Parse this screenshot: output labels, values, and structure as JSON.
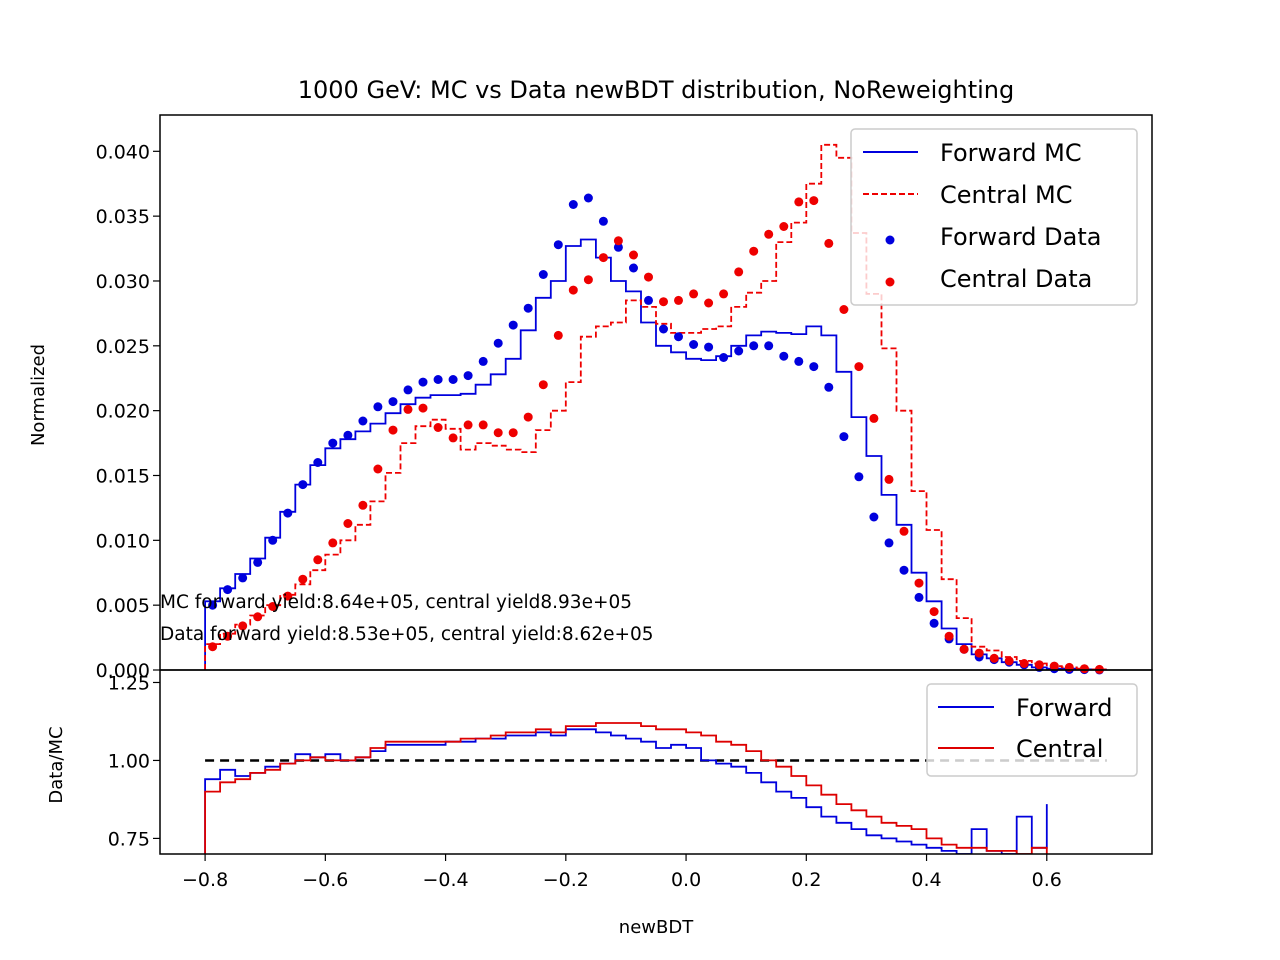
{
  "chart_data": [
    {
      "type": "line",
      "panel": "main",
      "title": "1000 GeV: MC vs Data newBDT distribution, NoReweighting",
      "ylabel": "Normalized",
      "xlim": [
        -0.875,
        0.775
      ],
      "ylim": [
        0.0,
        0.0428
      ],
      "yticks": [
        "0.000",
        "0.005",
        "0.010",
        "0.015",
        "0.020",
        "0.025",
        "0.030",
        "0.035",
        "0.040"
      ],
      "legend_position": "upper right",
      "legend": [
        "Forward MC",
        "Central MC",
        "Forward Data",
        "Central Data"
      ],
      "annotations": [
        "MC forward yield:8.64e+05, central yield8.93e+05",
        "Data forward yield:8.53e+05, central yield:8.62e+05"
      ],
      "bin_edges": [
        -0.8,
        -0.775,
        -0.75,
        -0.725,
        -0.7,
        -0.675,
        -0.65,
        -0.625,
        -0.6,
        -0.575,
        -0.55,
        -0.525,
        -0.5,
        -0.475,
        -0.45,
        -0.425,
        -0.4,
        -0.375,
        -0.35,
        -0.325,
        -0.3,
        -0.275,
        -0.25,
        -0.225,
        -0.2,
        -0.175,
        -0.15,
        -0.125,
        -0.1,
        -0.075,
        -0.05,
        -0.025,
        0.0,
        0.025,
        0.05,
        0.075,
        0.1,
        0.125,
        0.15,
        0.175,
        0.2,
        0.225,
        0.25,
        0.275,
        0.3,
        0.325,
        0.35,
        0.375,
        0.4,
        0.425,
        0.45,
        0.475,
        0.5,
        0.525,
        0.55,
        0.575,
        0.6,
        0.625,
        0.65,
        0.675,
        0.7
      ],
      "series": [
        {
          "name": "Forward MC",
          "style": "step-solid",
          "color": "#0000dd",
          "values": [
            0.0053,
            0.0063,
            0.0074,
            0.0086,
            0.0102,
            0.0122,
            0.0143,
            0.0158,
            0.0171,
            0.0178,
            0.0184,
            0.019,
            0.0198,
            0.0205,
            0.021,
            0.0212,
            0.0212,
            0.0213,
            0.022,
            0.0228,
            0.024,
            0.0262,
            0.0287,
            0.03,
            0.0327,
            0.0332,
            0.0318,
            0.03,
            0.0292,
            0.0268,
            0.025,
            0.0245,
            0.024,
            0.0239,
            0.0242,
            0.025,
            0.0258,
            0.0261,
            0.026,
            0.0259,
            0.0265,
            0.0258,
            0.023,
            0.0195,
            0.0165,
            0.0135,
            0.0112,
            0.0075,
            0.0053,
            0.0032,
            0.002,
            0.0012,
            0.0009,
            0.0006,
            0.0004,
            0.0002,
            0.0001,
            0.0001,
            5e-05,
            3e-05
          ]
        },
        {
          "name": "Central MC",
          "style": "step-dashed",
          "color": "#ee0000",
          "values": [
            0.002,
            0.0028,
            0.0035,
            0.0042,
            0.005,
            0.0058,
            0.0066,
            0.0077,
            0.0089,
            0.01,
            0.0112,
            0.013,
            0.0152,
            0.0175,
            0.0188,
            0.0193,
            0.0186,
            0.017,
            0.0175,
            0.0173,
            0.017,
            0.0168,
            0.0185,
            0.02,
            0.0222,
            0.0257,
            0.0265,
            0.0268,
            0.0285,
            0.028,
            0.0267,
            0.026,
            0.026,
            0.0263,
            0.0265,
            0.028,
            0.0291,
            0.03,
            0.033,
            0.0345,
            0.0375,
            0.0405,
            0.0395,
            0.0337,
            0.029,
            0.0248,
            0.02,
            0.0138,
            0.0108,
            0.007,
            0.004,
            0.0018,
            0.0015,
            0.001,
            0.0007,
            0.0005,
            0.0003,
            0.0002,
            0.0001,
            5e-05
          ]
        },
        {
          "name": "Forward Data",
          "style": "points",
          "color": "#0000dd",
          "values": [
            0.005,
            0.0062,
            0.0071,
            0.0083,
            0.01,
            0.0121,
            0.0143,
            0.016,
            0.0175,
            0.0181,
            0.0192,
            0.0203,
            0.0207,
            0.0216,
            0.0222,
            0.0224,
            0.0224,
            0.0227,
            0.0238,
            0.0252,
            0.0266,
            0.0279,
            0.0305,
            0.0328,
            0.0359,
            0.0364,
            0.0346,
            0.0326,
            0.031,
            0.0285,
            0.0263,
            0.0257,
            0.0251,
            0.0249,
            0.0241,
            0.0246,
            0.025,
            0.025,
            0.0242,
            0.0238,
            0.0234,
            0.0218,
            0.018,
            0.0149,
            0.0118,
            0.0098,
            0.0077,
            0.0056,
            0.0036,
            0.0024,
            0.0016,
            0.001,
            0.0008,
            0.0006,
            0.0004,
            0.0002,
            0.0001,
            5e-05,
            3e-05,
            1e-05
          ]
        },
        {
          "name": "Central Data",
          "style": "points",
          "color": "#ee0000",
          "values": [
            0.0018,
            0.0026,
            0.0034,
            0.0041,
            0.0049,
            0.0057,
            0.007,
            0.0085,
            0.0098,
            0.0113,
            0.0127,
            0.0155,
            0.0185,
            0.0201,
            0.0202,
            0.0187,
            0.0179,
            0.0189,
            0.0189,
            0.0183,
            0.0183,
            0.0195,
            0.022,
            0.0258,
            0.0293,
            0.0301,
            0.0318,
            0.0331,
            0.032,
            0.0303,
            0.0284,
            0.0285,
            0.029,
            0.0283,
            0.029,
            0.0307,
            0.0323,
            0.0336,
            0.0342,
            0.0361,
            0.0362,
            0.0329,
            0.0278,
            0.0234,
            0.0194,
            0.0147,
            0.0107,
            0.0067,
            0.0045,
            0.0026,
            0.0016,
            0.0013,
            0.0009,
            0.0007,
            0.0005,
            0.0004,
            0.0003,
            0.0002,
            0.0001,
            5e-05
          ]
        }
      ]
    },
    {
      "type": "line",
      "panel": "ratio",
      "xlabel": "newBDT",
      "ylabel": "Data/MC",
      "xlim": [
        -0.875,
        0.775
      ],
      "ylim": [
        0.7,
        1.29
      ],
      "xticks": [
        "−0.8",
        "−0.6",
        "−0.4",
        "−0.2",
        "0.0",
        "0.2",
        "0.4",
        "0.6"
      ],
      "yticks": [
        "0.75",
        "1.00",
        "1.25"
      ],
      "reference_line": 1.0,
      "legend_position": "upper right",
      "legend": [
        "Forward",
        "Central"
      ],
      "bin_edges": [
        -0.8,
        -0.775,
        -0.75,
        -0.725,
        -0.7,
        -0.675,
        -0.65,
        -0.625,
        -0.6,
        -0.575,
        -0.55,
        -0.525,
        -0.5,
        -0.475,
        -0.45,
        -0.425,
        -0.4,
        -0.375,
        -0.35,
        -0.325,
        -0.3,
        -0.275,
        -0.25,
        -0.225,
        -0.2,
        -0.175,
        -0.15,
        -0.125,
        -0.1,
        -0.075,
        -0.05,
        -0.025,
        0.0,
        0.025,
        0.05,
        0.075,
        0.1,
        0.125,
        0.15,
        0.175,
        0.2,
        0.225,
        0.25,
        0.275,
        0.3,
        0.325,
        0.35,
        0.375,
        0.4,
        0.425,
        0.45,
        0.475,
        0.5,
        0.525,
        0.55,
        0.575,
        0.6
      ],
      "series": [
        {
          "name": "Forward",
          "style": "step-solid",
          "color": "#0000dd",
          "values": [
            0.94,
            0.97,
            0.95,
            0.96,
            0.98,
            0.99,
            1.02,
            1.01,
            1.02,
            1.0,
            1.01,
            1.03,
            1.05,
            1.05,
            1.05,
            1.05,
            1.06,
            1.06,
            1.07,
            1.07,
            1.08,
            1.08,
            1.09,
            1.08,
            1.1,
            1.1,
            1.09,
            1.08,
            1.07,
            1.06,
            1.04,
            1.05,
            1.04,
            1.0,
            0.99,
            0.98,
            0.96,
            0.93,
            0.9,
            0.88,
            0.85,
            0.82,
            0.8,
            0.78,
            0.76,
            0.75,
            0.74,
            0.73,
            0.72,
            0.71,
            0.7,
            0.78,
            0.71,
            0.7,
            0.82,
            0.72,
            0.86
          ]
        },
        {
          "name": "Central",
          "style": "step-solid",
          "color": "#dd0000",
          "values": [
            0.9,
            0.93,
            0.94,
            0.96,
            0.97,
            0.99,
            1.0,
            1.01,
            1.0,
            1.0,
            1.01,
            1.04,
            1.06,
            1.06,
            1.06,
            1.06,
            1.06,
            1.07,
            1.07,
            1.08,
            1.09,
            1.09,
            1.1,
            1.09,
            1.11,
            1.11,
            1.12,
            1.12,
            1.12,
            1.11,
            1.1,
            1.1,
            1.09,
            1.08,
            1.06,
            1.05,
            1.03,
            1.0,
            0.98,
            0.95,
            0.92,
            0.89,
            0.86,
            0.84,
            0.82,
            0.8,
            0.79,
            0.78,
            0.75,
            0.73,
            0.72,
            0.72,
            0.71,
            0.71,
            0.7,
            0.72,
            0.7
          ]
        }
      ]
    }
  ]
}
